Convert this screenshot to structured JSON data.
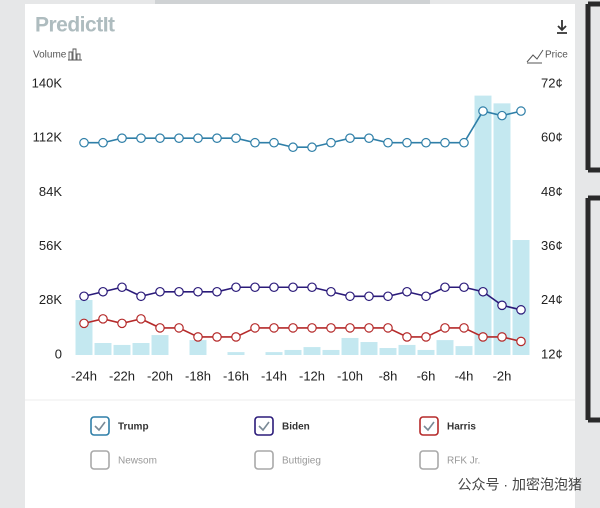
{
  "header": {
    "logo": "PredictIt"
  },
  "watermark": "公众号 · 加密泡泡猪",
  "chart_data": {
    "type": "combo",
    "y_label": "Volume",
    "y2_label": "Price",
    "categories": [
      "-24h",
      null,
      "-22h",
      null,
      "-20h",
      null,
      "-18h",
      null,
      "-16h",
      null,
      "-14h",
      null,
      "-12h",
      null,
      "-10h",
      null,
      "-8h",
      null,
      "-6h",
      null,
      "-4h",
      null,
      "-2h",
      null
    ],
    "volume": {
      "color": "#c4e8f0",
      "values": [
        28400,
        6200,
        5200,
        6200,
        10300,
        0,
        7700,
        0,
        1500,
        0,
        1500,
        2600,
        4100,
        2600,
        8800,
        6700,
        3600,
        5200,
        2600,
        7700,
        4600,
        134000,
        130000,
        59400
      ]
    },
    "series": [
      {
        "name": "Trump",
        "color": "#2f7fa8",
        "axis": "y2",
        "checked": true,
        "values": [
          59,
          59,
          60,
          60,
          60,
          60,
          60,
          60,
          60,
          59,
          59,
          58,
          58,
          59,
          60,
          60,
          59,
          59,
          59,
          59,
          59,
          66,
          65,
          66
        ]
      },
      {
        "name": "Biden",
        "color": "#2b1b7a",
        "axis": "y2",
        "checked": true,
        "values": [
          25,
          26,
          27,
          25,
          26,
          26,
          26,
          26,
          27,
          27,
          27,
          27,
          27,
          26,
          25,
          25,
          25,
          26,
          25,
          27,
          27,
          26,
          23,
          22
        ]
      },
      {
        "name": "Harris",
        "color": "#b52a2a",
        "axis": "y2",
        "checked": true,
        "values": [
          19,
          20,
          19,
          20,
          18,
          18,
          16,
          16,
          16,
          18,
          18,
          18,
          18,
          18,
          18,
          18,
          18,
          16,
          16,
          18,
          18,
          16,
          16,
          15
        ]
      }
    ],
    "other_candidates": [
      {
        "name": "Newsom",
        "checked": false
      },
      {
        "name": "Buttigieg",
        "checked": false
      },
      {
        "name": "RFK Jr.",
        "checked": false
      }
    ],
    "ylim": [
      0,
      140000
    ],
    "yticks": [
      0,
      {
        "value": 28000,
        "label": "28K"
      },
      {
        "value": 56000,
        "label": "56K"
      },
      {
        "value": 84000,
        "label": "84K"
      },
      {
        "value": 112000,
        "label": "112K"
      },
      {
        "value": 140000,
        "label": "140K"
      }
    ],
    "y2lim": [
      12,
      72
    ],
    "y2ticks": [
      {
        "value": 12,
        "label": "12¢"
      },
      {
        "value": 24,
        "label": "24¢"
      },
      {
        "value": 36,
        "label": "36¢"
      },
      {
        "value": 48,
        "label": "48¢"
      },
      {
        "value": 60,
        "label": "60¢"
      },
      {
        "value": 72,
        "label": "72¢"
      }
    ]
  }
}
